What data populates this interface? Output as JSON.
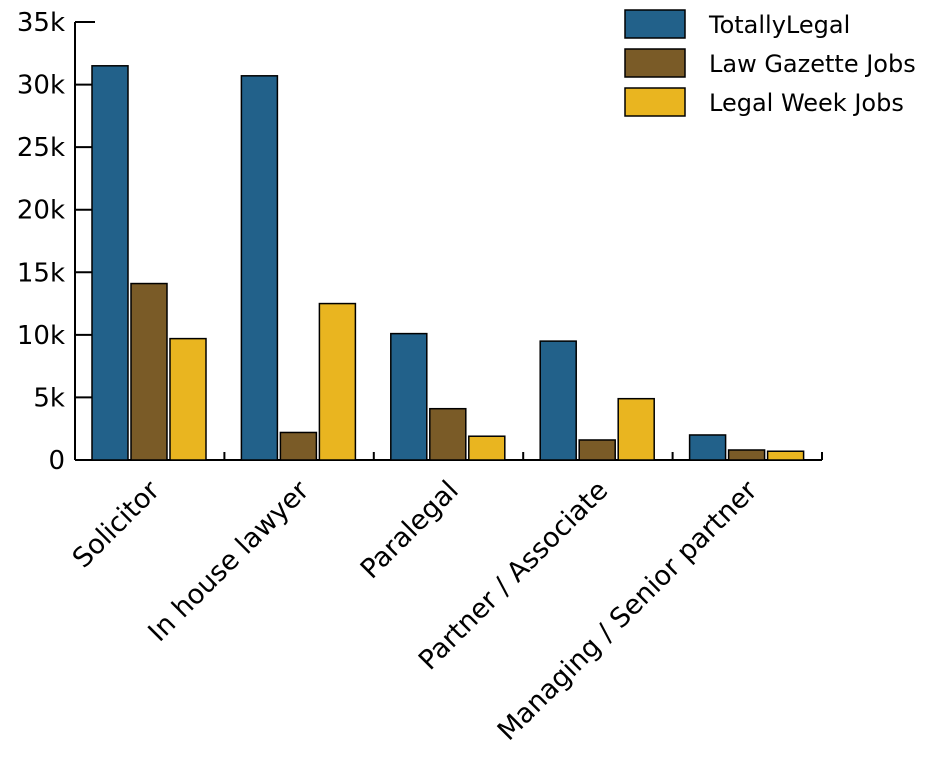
{
  "chart_data": {
    "type": "bar",
    "categories": [
      "Solicitor",
      "In house lawyer",
      "Paralegal",
      "Partner / Associate",
      "Managing / Senior partner"
    ],
    "series": [
      {
        "name": "TotallyLegal",
        "color": "#22618a",
        "values": [
          31500,
          30700,
          10100,
          9500,
          2000
        ]
      },
      {
        "name": "Law Gazette Jobs",
        "color": "#7a5b27",
        "values": [
          14100,
          2200,
          4100,
          1600,
          800
        ]
      },
      {
        "name": "Legal Week Jobs",
        "color": "#e9b520",
        "values": [
          9700,
          12500,
          1900,
          4900,
          700
        ]
      }
    ],
    "ylim": [
      0,
      35000
    ],
    "yticks": [
      0,
      5000,
      10000,
      15000,
      20000,
      25000,
      30000,
      35000
    ],
    "ytick_labels": [
      "0",
      "5k",
      "10k",
      "15k",
      "20k",
      "25k",
      "30k",
      "35k"
    ],
    "legend_position": "top-right",
    "grid": false
  }
}
